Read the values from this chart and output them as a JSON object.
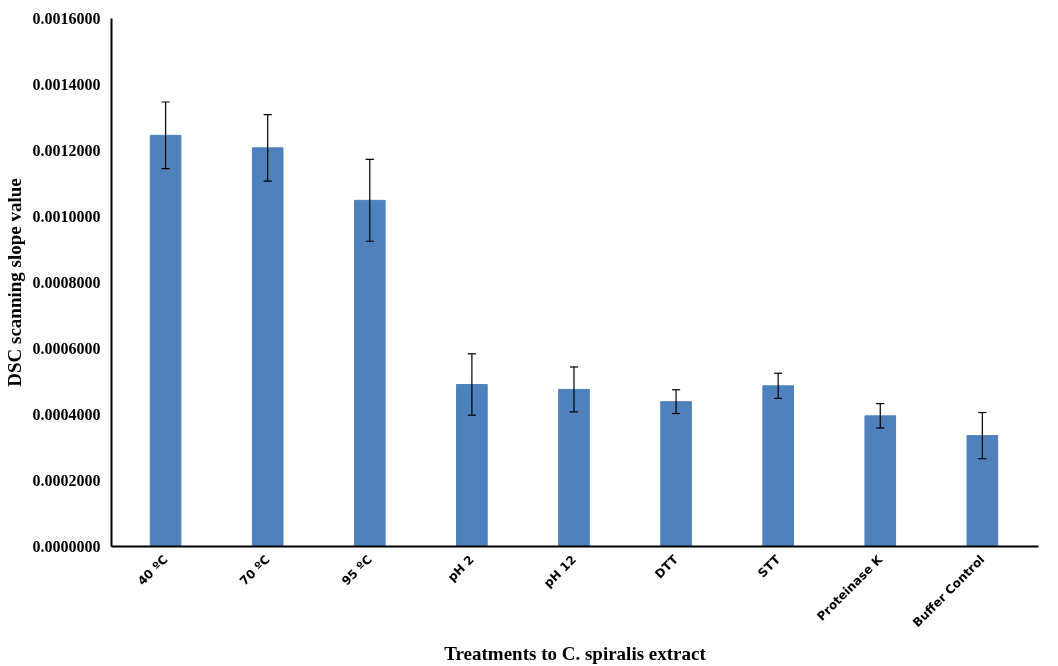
{
  "chart_data": {
    "type": "bar",
    "xlabel": "Treatments to C. spiralis extract",
    "ylabel": "DSC scanning slope value",
    "categories": [
      "40 ºC",
      "70 ºC",
      "95 ºC",
      "pH 2",
      "pH 12",
      "DTT",
      "STT",
      "Proteinase K",
      "Buffer Control"
    ],
    "values": [
      0.001246,
      0.001208,
      0.001049,
      0.000491,
      0.000476,
      0.000439,
      0.000487,
      0.000396,
      0.000336
    ],
    "errors": [
      0.000101,
      0.000101,
      0.000124,
      9.3e-05,
      6.8e-05,
      3.6e-05,
      3.8e-05,
      3.7e-05,
      7e-05
    ],
    "color": "#4f81bd",
    "ylim": [
      0,
      0.0016
    ],
    "yticks": [
      {
        "value": 0,
        "label": "0.0000000"
      },
      {
        "value": 0.0002,
        "label": "0.0002000"
      },
      {
        "value": 0.0004,
        "label": "0.0004000"
      },
      {
        "value": 0.0006,
        "label": "0.0006000"
      },
      {
        "value": 0.0008,
        "label": "0.0008000"
      },
      {
        "value": 0.001,
        "label": "0.0010000"
      },
      {
        "value": 0.0012,
        "label": "0.0012000"
      },
      {
        "value": 0.0014,
        "label": "0.0014000"
      },
      {
        "value": 0.0016,
        "label": "0.0016000"
      }
    ],
    "grid": false
  }
}
